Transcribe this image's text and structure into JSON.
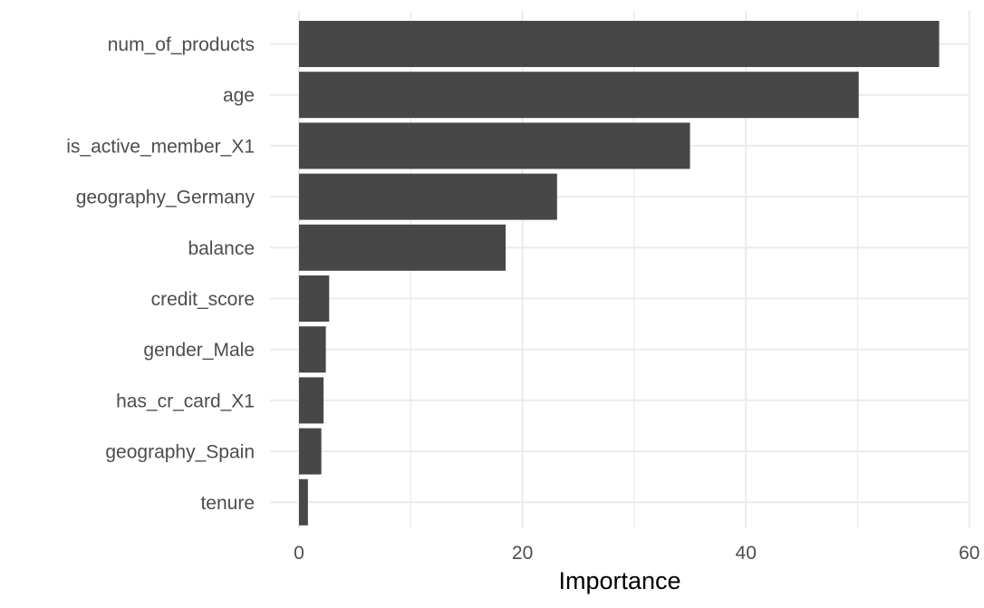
{
  "chart_data": {
    "type": "bar",
    "orientation": "horizontal",
    "categories": [
      "num_of_products",
      "age",
      "is_active_member_X1",
      "geography_Germany",
      "balance",
      "credit_score",
      "gender_Male",
      "has_cr_card_X1",
      "geography_Spain",
      "tenure"
    ],
    "values": [
      57.3,
      50.1,
      35.0,
      23.1,
      18.5,
      2.7,
      2.4,
      2.2,
      2.0,
      0.8
    ],
    "xlabel": "Importance",
    "ylabel": "",
    "xlim": [
      0,
      60
    ],
    "xticks": [
      0,
      20,
      40,
      60
    ],
    "grid": true,
    "colors": {
      "bar": "#474747",
      "grid": "#ebebeb",
      "text": "#4d4d4d"
    }
  }
}
